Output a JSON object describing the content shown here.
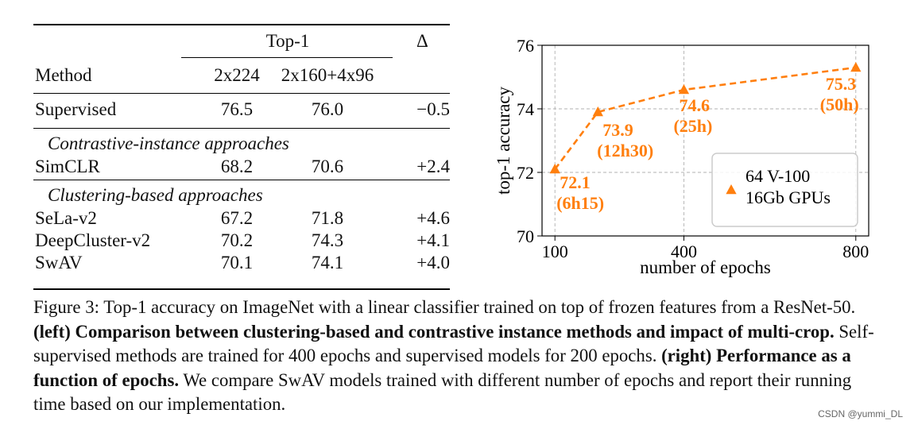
{
  "table": {
    "headers": {
      "method": "Method",
      "top1": "Top-1",
      "delta": "Δ",
      "col_a": "2x224",
      "col_b": "2x160+4x96"
    },
    "sections": [
      {
        "title": "",
        "rows": [
          {
            "method": "Supervised",
            "a": "76.5",
            "b": "76.0",
            "delta": "−0.5"
          }
        ]
      },
      {
        "title": "Contrastive-instance approaches",
        "rows": [
          {
            "method": "SimCLR",
            "a": "68.2",
            "b": "70.6",
            "delta": "+2.4"
          }
        ]
      },
      {
        "title": "Clustering-based approaches",
        "rows": [
          {
            "method": "SeLa-v2",
            "a": "67.2",
            "b": "71.8",
            "delta": "+4.6"
          },
          {
            "method": "DeepCluster-v2",
            "a": "70.2",
            "b": "74.3",
            "delta": "+4.1"
          },
          {
            "method": "SwAV",
            "a": "70.1",
            "b": "74.1",
            "delta": "+4.0"
          }
        ]
      }
    ]
  },
  "chart_data": {
    "type": "line",
    "xlabel": "number of epochs",
    "ylabel": "top-1 accuracy",
    "xlim": [
      70,
      830
    ],
    "ylim": [
      70,
      76
    ],
    "xticks": [
      100,
      400,
      800
    ],
    "yticks": [
      70,
      72,
      74,
      76
    ],
    "grid": true,
    "color": "#ff7f0e",
    "series": [
      {
        "name": "64 V-100 16Gb GPUs",
        "x": [
          100,
          200,
          400,
          800
        ],
        "y": [
          72.1,
          73.9,
          74.6,
          75.3
        ],
        "annotations": [
          {
            "value": "72.1",
            "time": "(6h15)"
          },
          {
            "value": "73.9",
            "time": "(12h30)"
          },
          {
            "value": "74.6",
            "time": "(25h)"
          },
          {
            "value": "75.3",
            "time": "(50h)"
          }
        ]
      }
    ],
    "legend": {
      "placement": "bottom-right",
      "lines": [
        "64 V-100",
        "16Gb GPUs"
      ]
    }
  },
  "caption": {
    "prefix": "Figure 3: Top-1 accuracy on ImageNet with a linear classifier trained on top of frozen features from a ResNet-50. ",
    "bold1": "(left) Comparison between clustering-based and contrastive instance methods and impact of multi-crop.",
    "mid": " Self-supervised methods are trained for 400 epochs and supervised models for 200 epochs. ",
    "bold2": "(right) Performance as a function of epochs.",
    "suffix": " We compare SwAV models trained with different number of epochs and report their running time based on our implementation."
  },
  "watermark": "CSDN @yummi_DL"
}
